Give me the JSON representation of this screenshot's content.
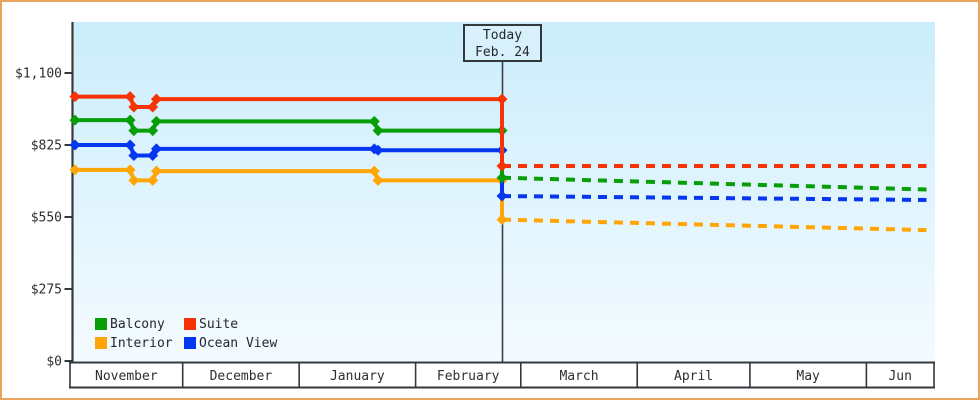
{
  "window": {
    "frame_border_color": "#e9a45c",
    "background": "#ffffff"
  },
  "today_box": {
    "line1": "Today",
    "line2": "Feb. 24"
  },
  "legend": {
    "items": [
      {
        "label": "Balcony",
        "color": "#089e08"
      },
      {
        "label": "Suite",
        "color": "#f53305"
      },
      {
        "label": "Interior",
        "color": "#ffa505"
      },
      {
        "label": "Ocean View",
        "color": "#0536f2"
      }
    ]
  },
  "chart_data": {
    "type": "line",
    "title": "",
    "today_label": "Feb. 24",
    "y_axis": {
      "tick_labels": [
        "$0",
        "$275",
        "$550",
        "$825",
        "$1,100"
      ],
      "tick_values": [
        0,
        275,
        550,
        825,
        1100
      ],
      "ylim": [
        0,
        1295
      ]
    },
    "x_axis": {
      "month_labels": [
        "November",
        "December",
        "January",
        "February",
        "March",
        "April",
        "May",
        "Jun"
      ]
    },
    "colors": {
      "plot_bg_top": "#cbedfb",
      "plot_bg_bottom": "#f4fbff",
      "axis": "#33383d",
      "text": "#2b2f33"
    },
    "series": [
      {
        "name": "Interior",
        "color": "#ffa505",
        "style_history": "solid",
        "style_forecast": "dotted",
        "history": [
          [
            "Nov 1",
            730
          ],
          [
            "Nov 17",
            730
          ],
          [
            "Nov 18",
            690
          ],
          [
            "Nov 23",
            690
          ],
          [
            "Nov 24",
            725
          ],
          [
            "Jan 21",
            725
          ],
          [
            "Jan 22",
            690
          ],
          [
            "Feb 24",
            690
          ]
        ],
        "drop_to": 540,
        "forecast": [
          [
            "Feb 24",
            540
          ],
          [
            "Jun 17",
            500
          ]
        ]
      },
      {
        "name": "Ocean View",
        "color": "#0536f2",
        "style_history": "solid",
        "style_forecast": "dotted",
        "history": [
          [
            "Nov 1",
            825
          ],
          [
            "Nov 17",
            825
          ],
          [
            "Nov 18",
            785
          ],
          [
            "Nov 23",
            785
          ],
          [
            "Nov 24",
            810
          ],
          [
            "Jan 21",
            810
          ],
          [
            "Jan 22",
            805
          ],
          [
            "Feb 24",
            805
          ]
        ],
        "drop_to": 630,
        "forecast": [
          [
            "Feb 24",
            630
          ],
          [
            "Jun 17",
            615
          ]
        ]
      },
      {
        "name": "Balcony",
        "color": "#089e08",
        "style_history": "solid",
        "style_forecast": "dotted",
        "history": [
          [
            "Nov 1",
            920
          ],
          [
            "Nov 17",
            920
          ],
          [
            "Nov 18",
            880
          ],
          [
            "Nov 23",
            880
          ],
          [
            "Nov 24",
            915
          ],
          [
            "Jan 21",
            915
          ],
          [
            "Jan 22",
            880
          ],
          [
            "Feb 24",
            880
          ]
        ],
        "drop_to": 700,
        "forecast": [
          [
            "Feb 24",
            700
          ],
          [
            "Jun 17",
            655
          ]
        ]
      },
      {
        "name": "Suite",
        "color": "#f53305",
        "style_history": "solid",
        "style_forecast": "dotted",
        "history": [
          [
            "Nov 1",
            1010
          ],
          [
            "Nov 17",
            1010
          ],
          [
            "Nov 18",
            970
          ],
          [
            "Nov 23",
            970
          ],
          [
            "Nov 24",
            1000
          ],
          [
            "Feb 24",
            1000
          ]
        ],
        "drop_to": 745,
        "forecast": [
          [
            "Feb 24",
            745
          ],
          [
            "Jun 17",
            745
          ]
        ]
      }
    ]
  }
}
